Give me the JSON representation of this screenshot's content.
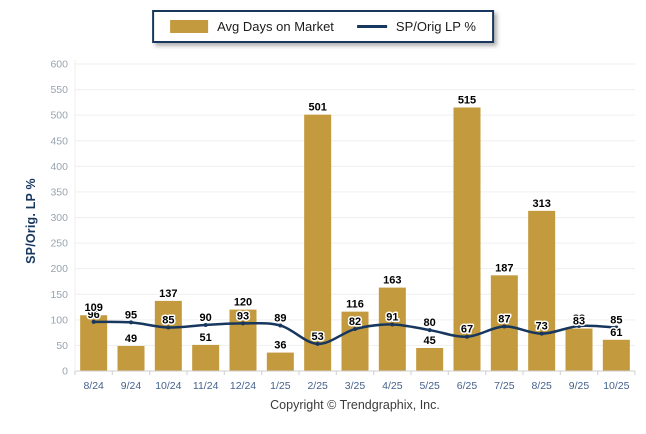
{
  "legend": {
    "bar_label": "Avg Days on Market",
    "line_label": "SP/Orig LP %"
  },
  "y_axis_title": "SP/Orig. LP %",
  "footer": "Copyright © Trendgraphix, Inc.",
  "colors": {
    "bar": "#C49A3E",
    "line": "#17375E",
    "grid": "#EFEFEF",
    "axis": "#CFCFCF",
    "x_label": "#44618C",
    "y_label": "#98A3B0",
    "value_label": "#000000",
    "legend_border": "#17375E"
  },
  "chart_data": {
    "type": "bar",
    "subtype": "bar-line-combo",
    "categories": [
      "8/24",
      "9/24",
      "10/24",
      "11/24",
      "12/24",
      "1/25",
      "2/25",
      "3/25",
      "4/25",
      "5/25",
      "6/25",
      "7/25",
      "8/25",
      "9/25",
      "10/25"
    ],
    "series": [
      {
        "name": "Avg Days on Market",
        "type": "bar",
        "values": [
          109,
          49,
          137,
          51,
          120,
          36,
          501,
          116,
          163,
          45,
          515,
          187,
          313,
          83,
          61
        ]
      },
      {
        "name": "SP/Orig LP %",
        "type": "line",
        "values": [
          96,
          95,
          85,
          90,
          93,
          89,
          53,
          82,
          91,
          80,
          67,
          87,
          73,
          88,
          85
        ]
      }
    ],
    "title": "",
    "xlabel": "",
    "ylabel": "SP/Orig. LP %",
    "ylim": [
      0,
      600
    ],
    "y_ticks": [
      0,
      50,
      100,
      150,
      200,
      250,
      300,
      350,
      400,
      450,
      500,
      550,
      600
    ],
    "grid": true,
    "legend_position": "top-center",
    "data_labels": true
  }
}
